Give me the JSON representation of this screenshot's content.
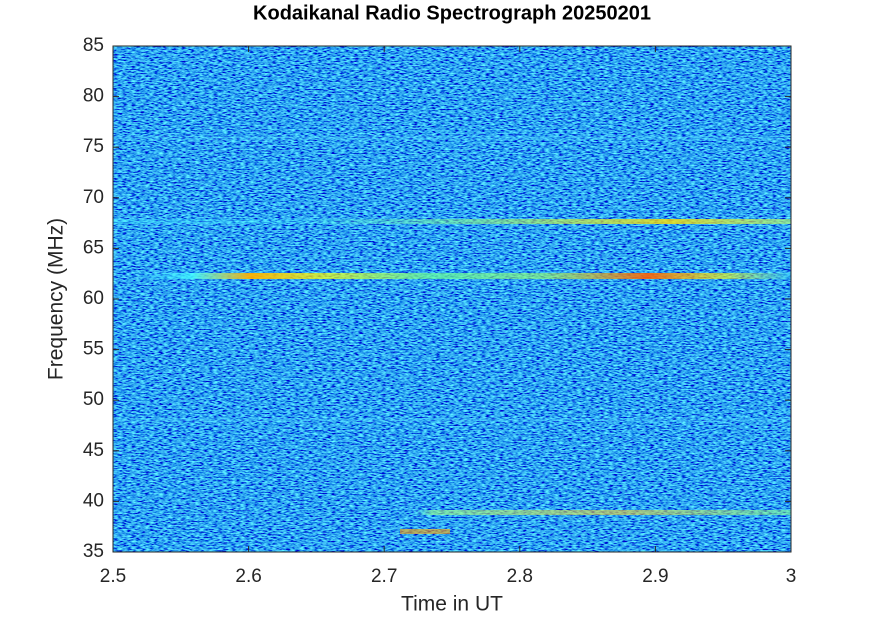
{
  "chart_data": {
    "type": "heatmap",
    "title": "Kodaikanal Radio Spectrograph  20250201",
    "xlabel": "Time in UT",
    "ylabel": "Frequency (MHz)",
    "xlim": [
      2.5,
      3
    ],
    "xticks": [
      2.5,
      2.6,
      2.7,
      2.8,
      2.9,
      3
    ],
    "ylim": [
      35,
      85
    ],
    "yticks": [
      35,
      40,
      45,
      50,
      55,
      60,
      65,
      70,
      75,
      80,
      85
    ],
    "colormap": "jet"
  }
}
